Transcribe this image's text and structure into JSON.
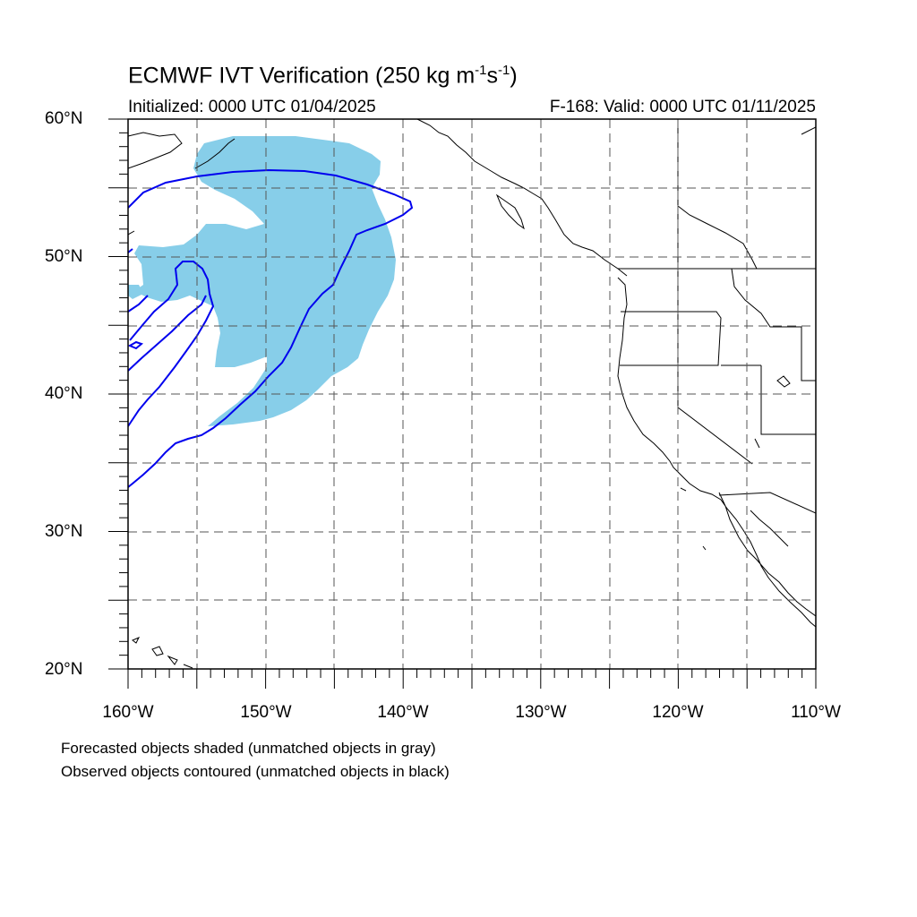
{
  "title_main": "ECMWF IVT Verification (250 kg m",
  "title_sup1": "-1",
  "title_mid": "s",
  "title_sup2": "-1",
  "title_end": ")",
  "initialized": "Initialized: 0000 UTC 01/04/2025",
  "valid": "F-168: Valid: 0000 UTC 01/11/2025",
  "lat_labels": [
    "60°N",
    "50°N",
    "40°N",
    "30°N",
    "20°N"
  ],
  "lon_labels": [
    "160°W",
    "150°W",
    "140°W",
    "130°W",
    "120°W",
    "110°W"
  ],
  "caption_forecast": "Forecasted objects shaded (unmatched objects in gray)",
  "caption_observed": "Observed objects contoured (unmatched objects in black)",
  "colors": {
    "forecast_fill": "#87cee9",
    "observed_contour": "#0000ee",
    "coastline": "#000000",
    "grid": "#555555"
  },
  "map_extent": {
    "lon_min": -160,
    "lon_max": -110,
    "lat_min": 20,
    "lat_max": 60
  }
}
